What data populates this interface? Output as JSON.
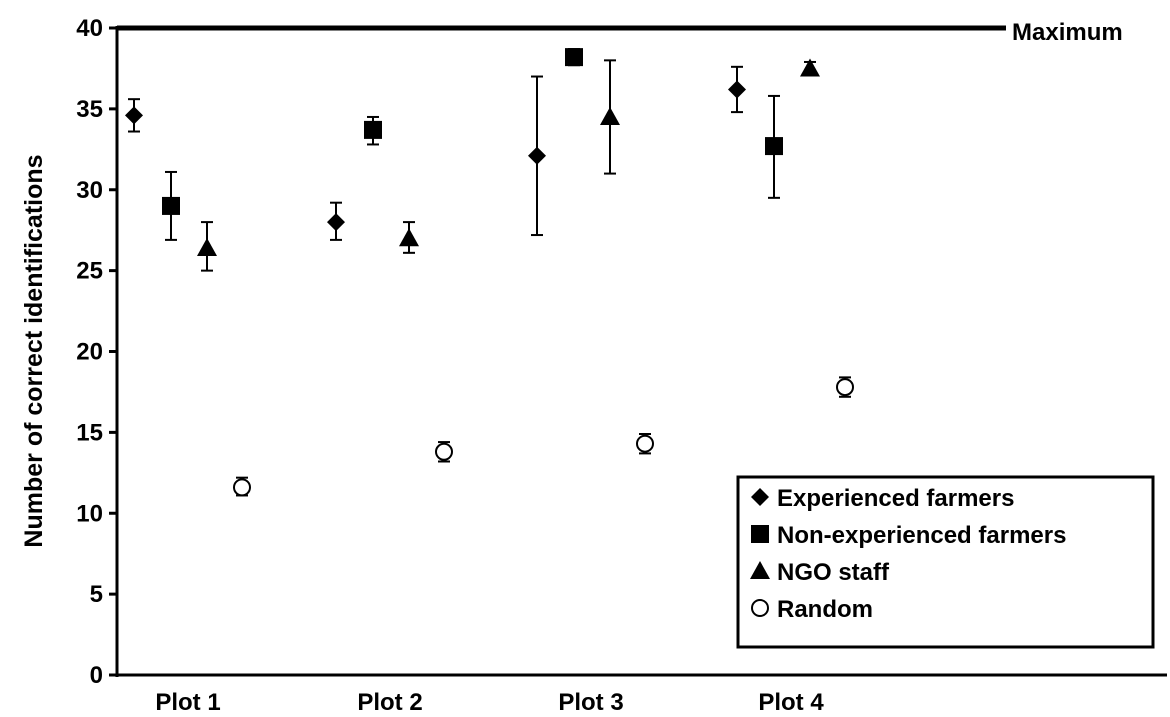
{
  "chart_data": {
    "type": "scatter",
    "title": "",
    "xlabel": "",
    "ylabel": "Number of correct identifications",
    "ylim": [
      0,
      40
    ],
    "yticks": [
      0,
      5,
      10,
      15,
      20,
      25,
      30,
      35,
      40
    ],
    "categories": [
      "Plot 1",
      "Plot 2",
      "Plot 3",
      "Plot 4"
    ],
    "max_line": {
      "value": 40,
      "label": "Maximum"
    },
    "grid": false,
    "legend_position": "bottom-right",
    "series": [
      {
        "name": "Experienced farmers",
        "marker": "diamond",
        "color": "#000000",
        "values": [
          34.6,
          28.0,
          32.1,
          36.2
        ],
        "err_low": [
          33.6,
          26.9,
          27.2,
          34.8
        ],
        "err_high": [
          35.6,
          29.2,
          37.0,
          37.6
        ]
      },
      {
        "name": "Non-experienced farmers",
        "marker": "square",
        "color": "#000000",
        "values": [
          29.0,
          33.7,
          38.2,
          32.7
        ],
        "err_low": [
          26.9,
          32.8,
          37.7,
          29.5
        ],
        "err_high": [
          31.1,
          34.5,
          38.7,
          35.8
        ]
      },
      {
        "name": "NGO staff",
        "marker": "triangle",
        "color": "#000000",
        "values": [
          26.4,
          27.0,
          34.5,
          37.5
        ],
        "err_low": [
          25.0,
          26.1,
          31.0,
          37.2
        ],
        "err_high": [
          28.0,
          28.0,
          38.0,
          37.9
        ]
      },
      {
        "name": "Random",
        "marker": "open-circle",
        "color": "#000000",
        "values": [
          11.6,
          13.8,
          14.3,
          17.8
        ],
        "err_low": [
          11.1,
          13.2,
          13.7,
          17.2
        ],
        "err_high": [
          12.2,
          14.4,
          14.9,
          18.4
        ]
      }
    ]
  }
}
